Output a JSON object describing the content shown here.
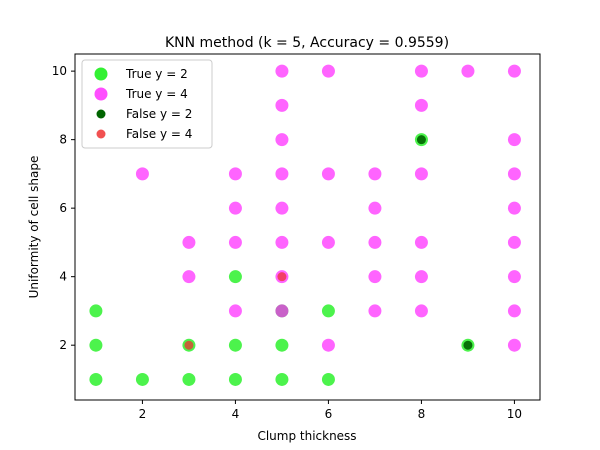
{
  "chart_data": {
    "type": "scatter",
    "title": "KNN method (k = 5, Accuracy = 0.9559)",
    "xlabel": "Clump thickness",
    "ylabel": "Uniformity of cell shape",
    "xlim": [
      0.55,
      10.55
    ],
    "ylim": [
      0.4,
      10.5
    ],
    "xticks": [
      2,
      4,
      6,
      8,
      10
    ],
    "yticks": [
      2,
      4,
      6,
      8,
      10
    ],
    "grid": false,
    "legend_position": "top-left",
    "series": [
      {
        "name": "True y = 2",
        "color": "#00ee00",
        "points": [
          [
            1,
            1
          ],
          [
            1,
            2
          ],
          [
            1,
            3
          ],
          [
            2,
            1
          ],
          [
            3,
            1
          ],
          [
            3,
            2
          ],
          [
            4,
            1
          ],
          [
            4,
            2
          ],
          [
            4,
            4
          ],
          [
            5,
            1
          ],
          [
            5,
            2
          ],
          [
            5,
            3
          ],
          [
            6,
            1
          ],
          [
            6,
            3
          ],
          [
            8,
            8
          ],
          [
            9,
            2
          ]
        ]
      },
      {
        "name": "True y = 4",
        "color": "#ff22ff",
        "points": [
          [
            2,
            7
          ],
          [
            3,
            4
          ],
          [
            3,
            5
          ],
          [
            4,
            3
          ],
          [
            4,
            5
          ],
          [
            4,
            6
          ],
          [
            4,
            7
          ],
          [
            5,
            3
          ],
          [
            5,
            4
          ],
          [
            5,
            5
          ],
          [
            5,
            6
          ],
          [
            5,
            7
          ],
          [
            5,
            8
          ],
          [
            5,
            9
          ],
          [
            5,
            10
          ],
          [
            6,
            2
          ],
          [
            6,
            5
          ],
          [
            6,
            7
          ],
          [
            6,
            10
          ],
          [
            7,
            3
          ],
          [
            7,
            4
          ],
          [
            7,
            5
          ],
          [
            7,
            6
          ],
          [
            7,
            7
          ],
          [
            8,
            3
          ],
          [
            8,
            4
          ],
          [
            8,
            5
          ],
          [
            8,
            7
          ],
          [
            8,
            9
          ],
          [
            8,
            10
          ],
          [
            9,
            10
          ],
          [
            10,
            2
          ],
          [
            10,
            3
          ],
          [
            10,
            4
          ],
          [
            10,
            5
          ],
          [
            10,
            6
          ],
          [
            10,
            7
          ],
          [
            10,
            8
          ],
          [
            10,
            10
          ]
        ]
      },
      {
        "name": "False y = 2",
        "color": "#006400",
        "points": [
          [
            8,
            8
          ],
          [
            9,
            2
          ]
        ]
      },
      {
        "name": "False y = 4",
        "color": "#ee3333",
        "points": [
          [
            3,
            2
          ],
          [
            5,
            4
          ]
        ]
      }
    ]
  }
}
